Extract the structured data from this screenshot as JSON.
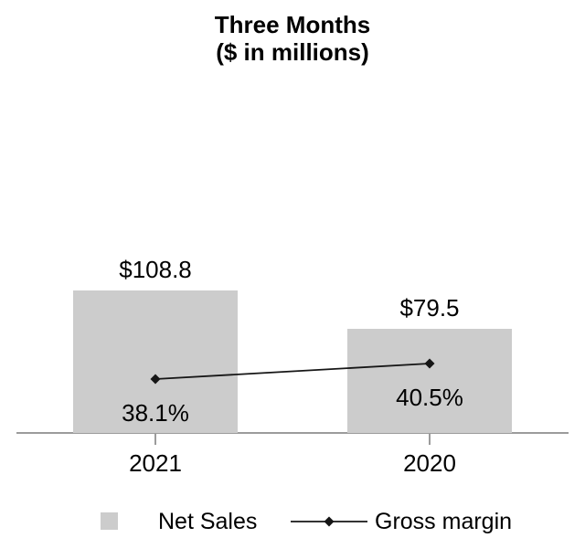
{
  "chart_data": {
    "type": "bar",
    "title": "Three Months ($ in millions)",
    "title_lines": [
      "Three Months",
      "($ in millions)"
    ],
    "categories": [
      "2021",
      "2020"
    ],
    "series": [
      {
        "name": "Net Sales",
        "type": "bar",
        "values": [
          108.8,
          79.5
        ],
        "labels": [
          "$108.8",
          "$79.5"
        ],
        "color": "#cccccc"
      },
      {
        "name": "Gross margin",
        "type": "line",
        "values": [
          38.1,
          40.5
        ],
        "labels": [
          "38.1%",
          "40.5%"
        ],
        "color": "#161616",
        "marker": "diamond"
      }
    ],
    "legend": {
      "position": "bottom",
      "entries": [
        "Net Sales",
        "Gross margin"
      ]
    },
    "grid": false,
    "axis_color": "#9b9b9b",
    "background": "#ffffff",
    "text_color": "#000000"
  }
}
